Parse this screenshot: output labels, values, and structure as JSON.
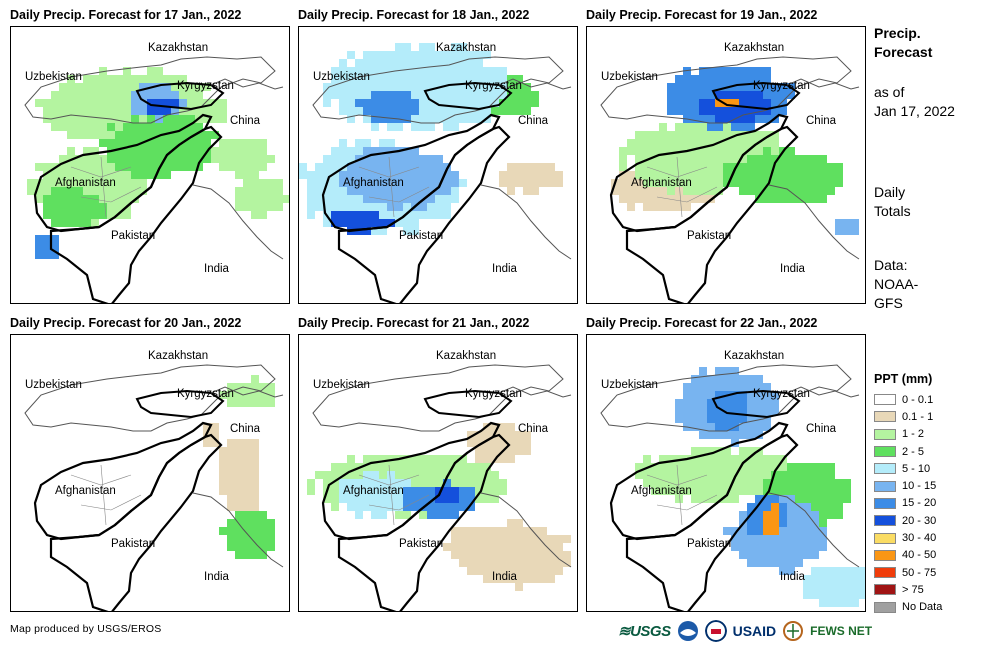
{
  "panels": [
    {
      "title": "Daily Precip. Forecast for 17 Jan., 2022"
    },
    {
      "title": "Daily Precip. Forecast for 18 Jan., 2022"
    },
    {
      "title": "Daily Precip. Forecast for 19 Jan., 2022"
    },
    {
      "title": "Daily Precip. Forecast for 20 Jan., 2022"
    },
    {
      "title": "Daily Precip. Forecast for 21 Jan., 2022"
    },
    {
      "title": "Daily Precip. Forecast for 22 Jan., 2022"
    }
  ],
  "map_labels": {
    "kazakhstan": "Kazakhstan",
    "uzbekistan": "Uzbekistan",
    "kyrgyzstan": "Kyrgyzstan",
    "china": "China",
    "afghanistan": "Afghanistan",
    "pakistan": "Pakistan",
    "india": "India"
  },
  "sidebar": {
    "title_line1": "Precip.",
    "title_line2": "Forecast",
    "asof_line1": "as of",
    "asof_line2": "Jan 17, 2022",
    "totals_line1": "Daily",
    "totals_line2": "Totals",
    "data_line1": "Data:",
    "data_line2": "NOAA-",
    "data_line3": "GFS"
  },
  "legend": {
    "title": "PPT (mm)",
    "items": [
      {
        "label": "0 - 0.1",
        "color": "#ffffff"
      },
      {
        "label": "0.1 - 1",
        "color": "#e8d8b8"
      },
      {
        "label": "1 - 2",
        "color": "#b4f4a0"
      },
      {
        "label": "2 - 5",
        "color": "#5fe05f"
      },
      {
        "label": "5 - 10",
        "color": "#b4ecfa"
      },
      {
        "label": "10 - 15",
        "color": "#78b4f0"
      },
      {
        "label": "15 - 20",
        "color": "#3c8ce6"
      },
      {
        "label": "20 - 30",
        "color": "#1450dc"
      },
      {
        "label": "30 - 40",
        "color": "#fadc64"
      },
      {
        "label": "40 - 50",
        "color": "#fa9614"
      },
      {
        "label": "50 - 75",
        "color": "#f03c0a"
      },
      {
        "label": "> 75",
        "color": "#a01414"
      },
      {
        "label": "No Data",
        "color": "#a0a0a0"
      }
    ]
  },
  "footer": {
    "credit": "Map produced by USGS/EROS"
  },
  "logos": {
    "usgs": "≋USGS",
    "usaid": "USAID",
    "fews": "FEWS NET"
  }
}
